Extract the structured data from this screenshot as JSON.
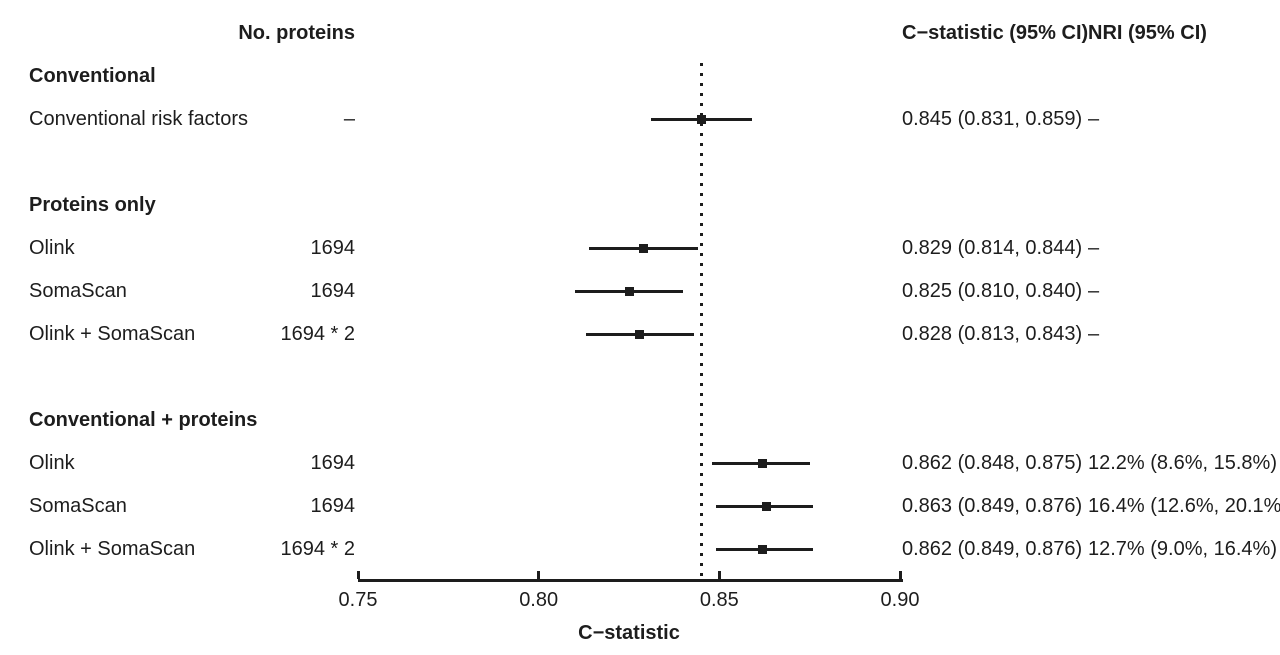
{
  "header": {
    "col_proteins": "No. proteins",
    "col_cstat": "C−statistic (95% CI)",
    "col_nri": "NRI (95% CI)"
  },
  "axis": {
    "label": "C−statistic",
    "ticks": [
      "0.75",
      "0.80",
      "0.85",
      "0.90"
    ],
    "tick_values": [
      0.75,
      0.8,
      0.85,
      0.9
    ]
  },
  "chart_data": {
    "type": "forest",
    "xlabel": "C−statistic",
    "xlim": [
      0.75,
      0.9
    ],
    "reference_line": 0.845,
    "columns": [
      "No. proteins",
      "C−statistic (95% CI)",
      "NRI (95% CI)"
    ],
    "sections": [
      {
        "title": "Conventional",
        "rows": [
          {
            "label": "Conventional risk factors",
            "n_proteins": "–",
            "est": 0.845,
            "lo": 0.831,
            "hi": 0.859,
            "cstat_text": "0.845 (0.831, 0.859)",
            "nri_text": "–"
          }
        ]
      },
      {
        "title": "Proteins only",
        "rows": [
          {
            "label": "Olink",
            "n_proteins": "1694",
            "est": 0.829,
            "lo": 0.814,
            "hi": 0.844,
            "cstat_text": "0.829 (0.814, 0.844)",
            "nri_text": "–"
          },
          {
            "label": "SomaScan",
            "n_proteins": "1694",
            "est": 0.825,
            "lo": 0.81,
            "hi": 0.84,
            "cstat_text": "0.825 (0.810, 0.840)",
            "nri_text": "–"
          },
          {
            "label": "Olink + SomaScan",
            "n_proteins": "1694 * 2",
            "est": 0.828,
            "lo": 0.813,
            "hi": 0.843,
            "cstat_text": "0.828 (0.813, 0.843)",
            "nri_text": "–"
          }
        ]
      },
      {
        "title": "Conventional + proteins",
        "rows": [
          {
            "label": "Olink",
            "n_proteins": "1694",
            "est": 0.862,
            "lo": 0.848,
            "hi": 0.875,
            "cstat_text": "0.862 (0.848, 0.875)",
            "nri_text": "12.2% (8.6%, 15.8%)"
          },
          {
            "label": "SomaScan",
            "n_proteins": "1694",
            "est": 0.863,
            "lo": 0.849,
            "hi": 0.876,
            "cstat_text": "0.863 (0.849, 0.876)",
            "nri_text": "16.4% (12.6%, 20.1%)"
          },
          {
            "label": "Olink + SomaScan",
            "n_proteins": "1694 * 2",
            "est": 0.862,
            "lo": 0.849,
            "hi": 0.876,
            "cstat_text": "0.862 (0.849, 0.876)",
            "nri_text": "12.7% (9.0%, 16.4%)"
          }
        ]
      }
    ]
  },
  "colors": {
    "ink": "#1d1d1d",
    "background": "#ffffff"
  }
}
